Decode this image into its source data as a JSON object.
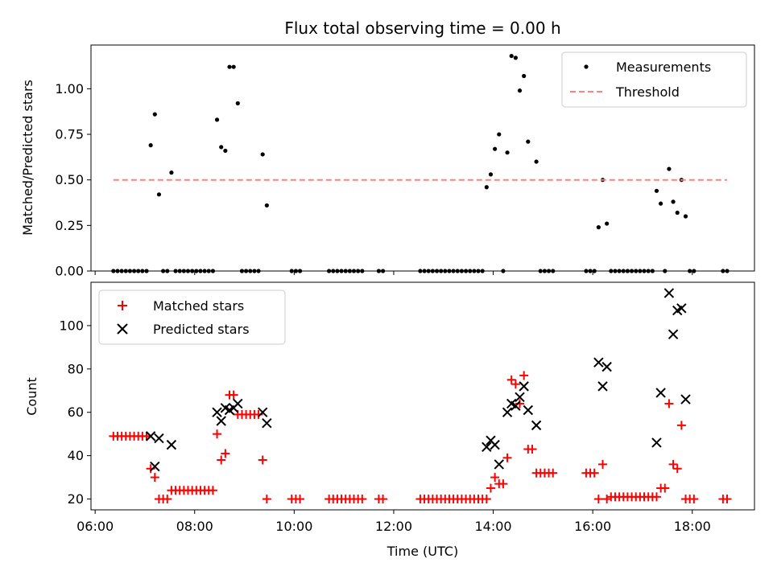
{
  "title": "Flux total observing time = 0.00 h",
  "xlabel": "Time (UTC)",
  "x_ticks": [
    "06:00",
    "08:00",
    "10:00",
    "12:00",
    "14:00",
    "16:00",
    "18:00"
  ],
  "chart_data": [
    {
      "type": "scatter",
      "ylabel": "Matched/Predicted stars",
      "xlim": [
        "05:55",
        "19:15"
      ],
      "ylim": [
        0,
        1.24
      ],
      "y_ticks": [
        "0.00",
        "0.25",
        "0.50",
        "0.75",
        "1.00"
      ],
      "legend": {
        "placement": "top-right",
        "entries": [
          "Measurements",
          "Threshold"
        ]
      },
      "series": [
        {
          "name": "Measurements",
          "color": "#000000",
          "marker": "dot",
          "points": [
            [
              "06:22",
              0
            ],
            [
              "06:27",
              0
            ],
            [
              "06:32",
              0
            ],
            [
              "06:37",
              0
            ],
            [
              "06:42",
              0
            ],
            [
              "06:47",
              0
            ],
            [
              "06:52",
              0
            ],
            [
              "06:57",
              0
            ],
            [
              "07:02",
              0
            ],
            [
              "07:07",
              0.69
            ],
            [
              "07:12",
              0.86
            ],
            [
              "07:17",
              0.42
            ],
            [
              "07:22",
              0
            ],
            [
              "07:27",
              0
            ],
            [
              "07:32",
              0.54
            ],
            [
              "07:37",
              0
            ],
            [
              "07:42",
              0
            ],
            [
              "07:47",
              0
            ],
            [
              "07:52",
              0
            ],
            [
              "07:57",
              0
            ],
            [
              "08:02",
              0
            ],
            [
              "08:07",
              0
            ],
            [
              "08:12",
              0
            ],
            [
              "08:17",
              0
            ],
            [
              "08:22",
              0
            ],
            [
              "08:27",
              0.83
            ],
            [
              "08:32",
              0.68
            ],
            [
              "08:37",
              0.66
            ],
            [
              "08:42",
              1.12
            ],
            [
              "08:47",
              1.12
            ],
            [
              "08:52",
              0.92
            ],
            [
              "08:57",
              0
            ],
            [
              "09:02",
              0
            ],
            [
              "09:07",
              0
            ],
            [
              "09:12",
              0
            ],
            [
              "09:17",
              0
            ],
            [
              "09:22",
              0.64
            ],
            [
              "09:27",
              0.36
            ],
            [
              "09:57",
              0
            ],
            [
              "10:02",
              0
            ],
            [
              "10:07",
              0
            ],
            [
              "10:42",
              0
            ],
            [
              "10:47",
              0
            ],
            [
              "10:52",
              0
            ],
            [
              "10:57",
              0
            ],
            [
              "11:02",
              0
            ],
            [
              "11:07",
              0
            ],
            [
              "11:12",
              0
            ],
            [
              "11:17",
              0
            ],
            [
              "11:22",
              0
            ],
            [
              "11:42",
              0
            ],
            [
              "11:47",
              0
            ],
            [
              "12:32",
              0
            ],
            [
              "12:37",
              0
            ],
            [
              "12:42",
              0
            ],
            [
              "12:47",
              0
            ],
            [
              "12:52",
              0
            ],
            [
              "12:57",
              0
            ],
            [
              "13:02",
              0
            ],
            [
              "13:07",
              0
            ],
            [
              "13:12",
              0
            ],
            [
              "13:17",
              0
            ],
            [
              "13:22",
              0
            ],
            [
              "13:27",
              0
            ],
            [
              "13:32",
              0
            ],
            [
              "13:37",
              0
            ],
            [
              "13:42",
              0
            ],
            [
              "13:47",
              0
            ],
            [
              "13:52",
              0.46
            ],
            [
              "13:57",
              0.53
            ],
            [
              "14:02",
              0.67
            ],
            [
              "14:07",
              0.75
            ],
            [
              "14:12",
              0
            ],
            [
              "14:17",
              0.65
            ],
            [
              "14:22",
              1.18
            ],
            [
              "14:27",
              1.17
            ],
            [
              "14:32",
              0.99
            ],
            [
              "14:37",
              1.07
            ],
            [
              "14:42",
              0.71
            ],
            [
              "14:52",
              0.6
            ],
            [
              "14:57",
              0
            ],
            [
              "15:02",
              0
            ],
            [
              "15:07",
              0
            ],
            [
              "15:12",
              0
            ],
            [
              "15:52",
              0
            ],
            [
              "15:57",
              0
            ],
            [
              "16:02",
              0
            ],
            [
              "16:07",
              0.24
            ],
            [
              "16:12",
              0.5
            ],
            [
              "16:17",
              0.26
            ],
            [
              "16:22",
              0
            ],
            [
              "16:27",
              0
            ],
            [
              "16:32",
              0
            ],
            [
              "16:37",
              0
            ],
            [
              "16:42",
              0
            ],
            [
              "16:47",
              0
            ],
            [
              "16:52",
              0
            ],
            [
              "16:57",
              0
            ],
            [
              "17:02",
              0
            ],
            [
              "17:07",
              0
            ],
            [
              "17:12",
              0
            ],
            [
              "17:17",
              0.44
            ],
            [
              "17:22",
              0.37
            ],
            [
              "17:27",
              0
            ],
            [
              "17:32",
              0.56
            ],
            [
              "17:37",
              0.38
            ],
            [
              "17:42",
              0.32
            ],
            [
              "17:47",
              0.5
            ],
            [
              "17:52",
              0.3
            ],
            [
              "17:57",
              0
            ],
            [
              "18:02",
              0
            ],
            [
              "18:37",
              0
            ],
            [
              "18:42",
              0
            ]
          ]
        },
        {
          "name": "Threshold",
          "color": "#ff8080",
          "style": "dashed",
          "points": [
            [
              "06:22",
              0.5
            ],
            [
              "18:42",
              0.5
            ]
          ]
        }
      ]
    },
    {
      "type": "scatter",
      "ylabel": "Count",
      "xlim": [
        "05:55",
        "19:15"
      ],
      "ylim": [
        15,
        120
      ],
      "y_ticks": [
        "20",
        "40",
        "60",
        "80",
        "100"
      ],
      "legend": {
        "placement": "top-left",
        "entries": [
          "Matched stars",
          "Predicted stars"
        ]
      },
      "series": [
        {
          "name": "Matched stars",
          "color": "#ff0000",
          "marker": "plus",
          "points": [
            [
              "06:22",
              49
            ],
            [
              "06:27",
              49
            ],
            [
              "06:32",
              49
            ],
            [
              "06:37",
              49
            ],
            [
              "06:42",
              49
            ],
            [
              "06:47",
              49
            ],
            [
              "06:52",
              49
            ],
            [
              "06:57",
              49
            ],
            [
              "07:02",
              49
            ],
            [
              "07:07",
              34
            ],
            [
              "07:12",
              30
            ],
            [
              "07:17",
              20
            ],
            [
              "07:22",
              20
            ],
            [
              "07:27",
              20
            ],
            [
              "07:32",
              24
            ],
            [
              "07:37",
              24
            ],
            [
              "07:42",
              24
            ],
            [
              "07:47",
              24
            ],
            [
              "07:52",
              24
            ],
            [
              "07:57",
              24
            ],
            [
              "08:02",
              24
            ],
            [
              "08:07",
              24
            ],
            [
              "08:12",
              24
            ],
            [
              "08:17",
              24
            ],
            [
              "08:22",
              24
            ],
            [
              "08:27",
              50
            ],
            [
              "08:32",
              38
            ],
            [
              "08:37",
              41
            ],
            [
              "08:42",
              68
            ],
            [
              "08:47",
              68
            ],
            [
              "08:52",
              59
            ],
            [
              "08:57",
              59
            ],
            [
              "09:02",
              59
            ],
            [
              "09:07",
              59
            ],
            [
              "09:12",
              59
            ],
            [
              "09:17",
              59
            ],
            [
              "09:22",
              38
            ],
            [
              "09:27",
              20
            ],
            [
              "09:57",
              20
            ],
            [
              "10:02",
              20
            ],
            [
              "10:07",
              20
            ],
            [
              "10:42",
              20
            ],
            [
              "10:47",
              20
            ],
            [
              "10:52",
              20
            ],
            [
              "10:57",
              20
            ],
            [
              "11:02",
              20
            ],
            [
              "11:07",
              20
            ],
            [
              "11:12",
              20
            ],
            [
              "11:17",
              20
            ],
            [
              "11:22",
              20
            ],
            [
              "11:42",
              20
            ],
            [
              "11:47",
              20
            ],
            [
              "12:32",
              20
            ],
            [
              "12:37",
              20
            ],
            [
              "12:42",
              20
            ],
            [
              "12:47",
              20
            ],
            [
              "12:52",
              20
            ],
            [
              "12:57",
              20
            ],
            [
              "13:02",
              20
            ],
            [
              "13:07",
              20
            ],
            [
              "13:12",
              20
            ],
            [
              "13:17",
              20
            ],
            [
              "13:22",
              20
            ],
            [
              "13:27",
              20
            ],
            [
              "13:32",
              20
            ],
            [
              "13:37",
              20
            ],
            [
              "13:42",
              20
            ],
            [
              "13:47",
              20
            ],
            [
              "13:52",
              20
            ],
            [
              "13:57",
              25
            ],
            [
              "14:02",
              30
            ],
            [
              "14:07",
              27
            ],
            [
              "14:12",
              27
            ],
            [
              "14:17",
              39
            ],
            [
              "14:22",
              75
            ],
            [
              "14:27",
              73
            ],
            [
              "14:32",
              64
            ],
            [
              "14:37",
              77
            ],
            [
              "14:42",
              43
            ],
            [
              "14:47",
              43
            ],
            [
              "14:52",
              32
            ],
            [
              "14:57",
              32
            ],
            [
              "15:02",
              32
            ],
            [
              "15:07",
              32
            ],
            [
              "15:12",
              32
            ],
            [
              "15:52",
              32
            ],
            [
              "15:57",
              32
            ],
            [
              "16:02",
              32
            ],
            [
              "16:07",
              20
            ],
            [
              "16:12",
              36
            ],
            [
              "16:17",
              20
            ],
            [
              "16:22",
              21
            ],
            [
              "16:27",
              21
            ],
            [
              "16:32",
              21
            ],
            [
              "16:37",
              21
            ],
            [
              "16:42",
              21
            ],
            [
              "16:47",
              21
            ],
            [
              "16:52",
              21
            ],
            [
              "16:57",
              21
            ],
            [
              "17:02",
              21
            ],
            [
              "17:07",
              21
            ],
            [
              "17:12",
              21
            ],
            [
              "17:17",
              21
            ],
            [
              "17:22",
              25
            ],
            [
              "17:27",
              25
            ],
            [
              "17:32",
              64
            ],
            [
              "17:37",
              36
            ],
            [
              "17:42",
              34
            ],
            [
              "17:47",
              54
            ],
            [
              "17:52",
              20
            ],
            [
              "17:57",
              20
            ],
            [
              "18:02",
              20
            ],
            [
              "18:37",
              20
            ],
            [
              "18:42",
              20
            ]
          ]
        },
        {
          "name": "Predicted stars",
          "color": "#000000",
          "marker": "x",
          "points": [
            [
              "07:07",
              49
            ],
            [
              "07:12",
              35
            ],
            [
              "07:17",
              48
            ],
            [
              "07:32",
              45
            ],
            [
              "08:27",
              60
            ],
            [
              "08:32",
              56
            ],
            [
              "08:37",
              62
            ],
            [
              "08:42",
              61
            ],
            [
              "08:47",
              62
            ],
            [
              "08:52",
              64
            ],
            [
              "09:22",
              60
            ],
            [
              "09:27",
              55
            ],
            [
              "13:52",
              44
            ],
            [
              "13:57",
              47
            ],
            [
              "14:02",
              45
            ],
            [
              "14:07",
              36
            ],
            [
              "14:17",
              60
            ],
            [
              "14:22",
              64
            ],
            [
              "14:27",
              63
            ],
            [
              "14:32",
              67
            ],
            [
              "14:37",
              72
            ],
            [
              "14:42",
              61
            ],
            [
              "14:52",
              54
            ],
            [
              "16:07",
              83
            ],
            [
              "16:12",
              72
            ],
            [
              "16:17",
              81
            ],
            [
              "17:17",
              46
            ],
            [
              "17:22",
              69
            ],
            [
              "17:32",
              115
            ],
            [
              "17:37",
              96
            ],
            [
              "17:42",
              107
            ],
            [
              "17:47",
              108
            ],
            [
              "17:52",
              66
            ]
          ]
        }
      ]
    }
  ]
}
